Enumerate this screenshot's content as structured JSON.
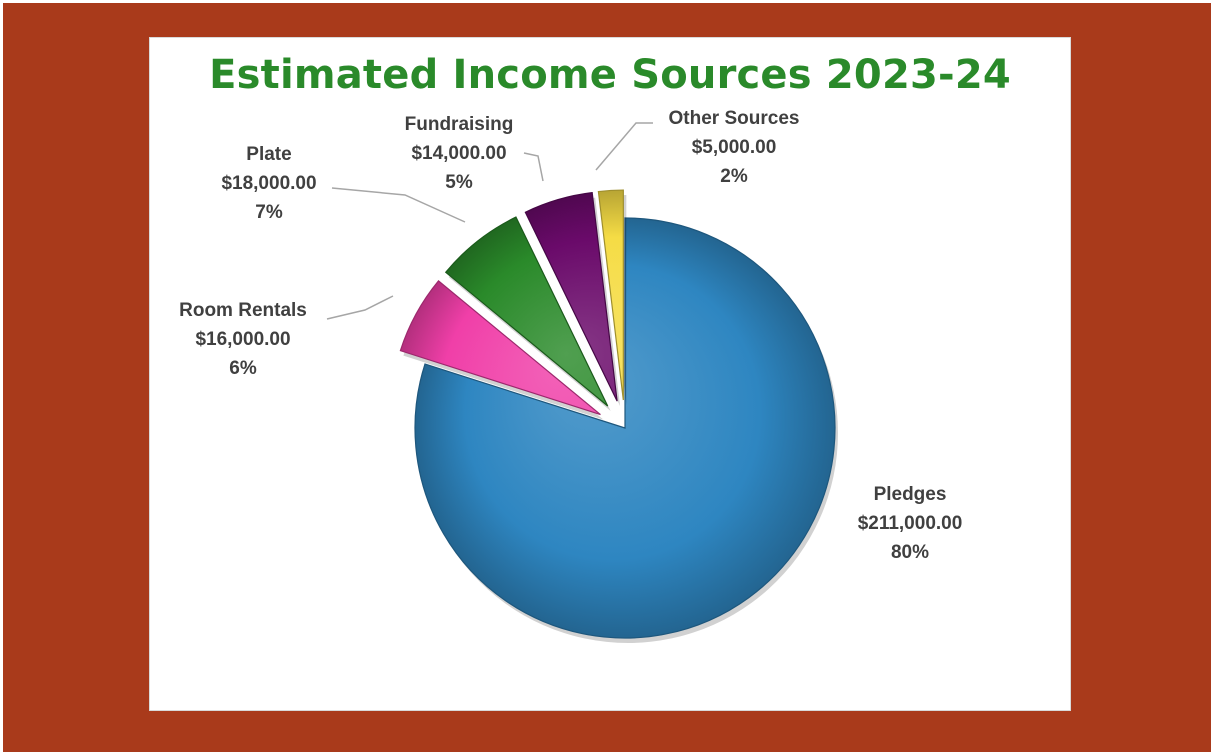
{
  "chart_data": {
    "type": "pie",
    "title": "Estimated Income Sources 2023-24",
    "legend": "none",
    "slices": [
      {
        "name": "Pledges",
        "value": 211000,
        "value_label": "$211,000.00",
        "percent_label": "80%",
        "color": "#2e86c1"
      },
      {
        "name": "Room Rentals",
        "value": 16000,
        "value_label": "$16,000.00",
        "percent_label": "6%",
        "color": "#f03fa8"
      },
      {
        "name": "Plate",
        "value": 18000,
        "value_label": "$18,000.00",
        "percent_label": "7%",
        "color": "#2a8a2a"
      },
      {
        "name": "Fundraising",
        "value": 14000,
        "value_label": "$14,000.00",
        "percent_label": "5%",
        "color": "#6a0a6a"
      },
      {
        "name": "Other Sources",
        "value": 5000,
        "value_label": "$5,000.00",
        "percent_label": "2%",
        "color": "#f5dc45"
      }
    ],
    "exploded_slices": [
      "Room Rentals",
      "Plate",
      "Fundraising",
      "Other Sources"
    ]
  },
  "colors": {
    "frame": "#a93a1b",
    "title": "#2a8a2a",
    "label_text": "#404040",
    "leader_line": "#a6a6a6"
  }
}
